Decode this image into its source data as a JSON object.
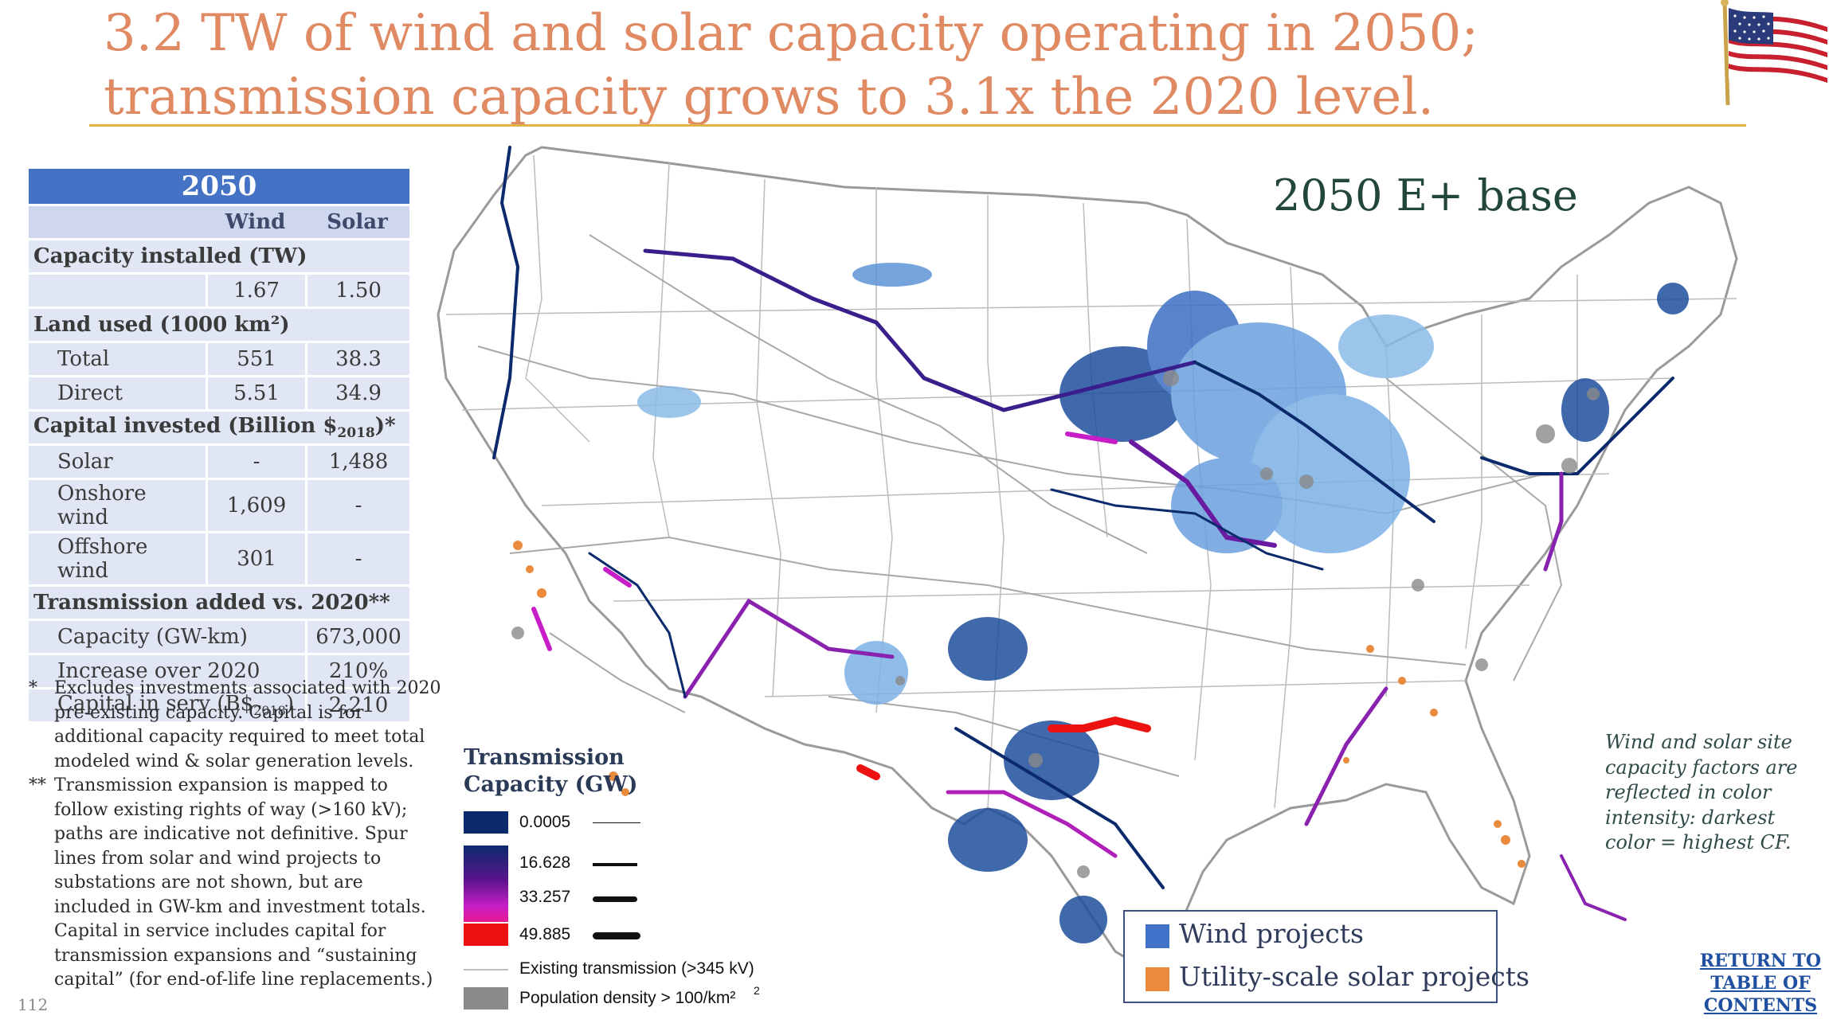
{
  "slide": {
    "title": "3.2 TW of wind and solar capacity operating in 2050; transmission capacity grows to 3.1x the 2020 level.",
    "page_number": "112",
    "flag_icon": "us-flag-icon"
  },
  "table": {
    "year": "2050",
    "col_wind": "Wind",
    "col_solar": "Solar",
    "sections": {
      "capacity": "Capacity installed (TW)",
      "land": "Land used (1000 km²)",
      "capital": "Capital invested (Billion $",
      "capital_sub": "2018",
      "capital_tail": ")*",
      "transmission": "Transmission added vs. 2020**"
    },
    "capacity_row": {
      "wind": "1.67",
      "solar": "1.50"
    },
    "land_rows": [
      {
        "label": "Total",
        "wind": "551",
        "solar": "38.3"
      },
      {
        "label": "Direct",
        "wind": "5.51",
        "solar": "34.9"
      }
    ],
    "capital_rows": [
      {
        "label": "Solar",
        "wind": "-",
        "solar": "1,488"
      },
      {
        "label": "Onshore wind",
        "wind": "1,609",
        "solar": "-"
      },
      {
        "label": "Offshore wind",
        "wind": "301",
        "solar": "-"
      }
    ],
    "transmission_rows": [
      {
        "label": "Capacity (GW-km)",
        "value": "673,000"
      },
      {
        "label": "Increase over 2020",
        "value": "210%"
      },
      {
        "label": "Capital in serv (B$",
        "label_sub": "2018",
        "label_tail": ")",
        "value": "2,210"
      }
    ]
  },
  "footnotes": [
    {
      "mark": "*",
      "text": "Excludes investments associated with 2020 pre-existing capacity. Capital is for additional capacity required to meet total modeled wind & solar generation levels."
    },
    {
      "mark": "**",
      "text": "Transmission expansion is mapped to follow existing rights of way (>160 kV); paths are indicative not definitive. Spur lines from solar and wind projects to substations are not shown, but are included in GW-km and investment totals. Capital in service includes capital for transmission expansions and “sustaining capital” (for end-of-life line replacements.)"
    }
  ],
  "map": {
    "label": "2050 E+ base",
    "transmission_legend": {
      "title_line1": "Transmission",
      "title_line2": "Capacity (GW)",
      "items": [
        "0.0005",
        "16.628",
        "33.257",
        "49.885"
      ],
      "existing": "Existing transmission (>345 kV)",
      "population": "Population density > 100/km²"
    },
    "project_legend": {
      "wind": "Wind projects",
      "solar": "Utility-scale solar projects"
    },
    "colors": {
      "wind": "#3f72c8",
      "solar": "#ea8a3c",
      "tx_low": "#0a2a6b",
      "tx_mid": "#5a148c",
      "tx_high": "#c81ec8",
      "tx_max": "#ee1111"
    },
    "cf_note": "Wind and solar site capacity factors are reflected in color intensity: darkest color = highest CF."
  },
  "nav": {
    "return_line1": "RETURN TO",
    "return_line2": "TABLE OF",
    "return_line3": "CONTENTS"
  }
}
